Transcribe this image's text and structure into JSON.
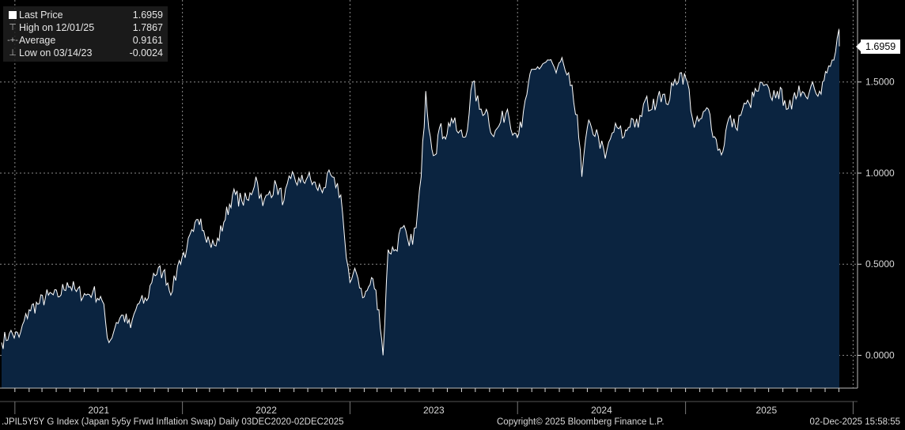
{
  "legend": {
    "last_price": {
      "label": "Last Price",
      "value": "1.6959"
    },
    "high": {
      "label": "High on 12/01/25",
      "value": "1.7867"
    },
    "average": {
      "label": "Average",
      "value": "0.9161"
    },
    "low": {
      "label": "Low on 03/14/23",
      "value": "-0.0024"
    }
  },
  "last_badge": "1.6959",
  "footer": {
    "left": ".JPIL5Y5Y G Index (Japan 5y5y Frwd Inflation Swap) Daily 03DEC2020-02DEC2025",
    "center": "Copyright© 2025 Bloomberg Finance L.P.",
    "right": "02-Dec-2025 15:58:55"
  },
  "colors": {
    "background": "#000000",
    "area_fill": "#0b2440",
    "line": "#ffffff",
    "grid": "#8a8a8a",
    "axis_text": "#d9d9d9"
  },
  "chart_data": {
    "type": "area",
    "title": "",
    "xlabel": "",
    "ylabel": "",
    "ylim": [
      -0.18,
      1.95
    ],
    "yticks": [
      "0.0000",
      "0.5000",
      "1.0000",
      "1.5000"
    ],
    "xtick_labels": [
      "2021",
      "2022",
      "2023",
      "2024",
      "2025"
    ],
    "grid": true,
    "legend_position": "top-left",
    "series": [
      {
        "name": "Last Price",
        "x": [
          "2020-12-03",
          "2020-12-20",
          "2021-01-10",
          "2021-02-01",
          "2021-02-20",
          "2021-03-15",
          "2021-04-05",
          "2021-04-25",
          "2021-05-15",
          "2021-06-05",
          "2021-06-20",
          "2021-07-10",
          "2021-07-25",
          "2021-08-10",
          "2021-08-25",
          "2021-09-10",
          "2021-09-25",
          "2021-10-15",
          "2021-10-30",
          "2021-11-20",
          "2021-12-10",
          "2021-12-25",
          "2022-01-10",
          "2022-01-25",
          "2022-02-10",
          "2022-03-01",
          "2022-03-15",
          "2022-04-01",
          "2022-04-20",
          "2022-05-10",
          "2022-05-25",
          "2022-06-10",
          "2022-06-25",
          "2022-07-10",
          "2022-07-25",
          "2022-08-10",
          "2022-08-25",
          "2022-09-15",
          "2022-10-01",
          "2022-10-20",
          "2022-11-05",
          "2022-11-20",
          "2022-12-01",
          "2022-12-12",
          "2022-12-20",
          "2023-01-01",
          "2023-01-15",
          "2023-02-01",
          "2023-02-20",
          "2023-03-05",
          "2023-03-14",
          "2023-03-25",
          "2023-04-10",
          "2023-04-25",
          "2023-05-10",
          "2023-05-25",
          "2023-06-05",
          "2023-06-15",
          "2023-06-25",
          "2023-07-05",
          "2023-07-15",
          "2023-07-25",
          "2023-08-10",
          "2023-08-25",
          "2023-09-10",
          "2023-09-25",
          "2023-10-10",
          "2023-10-25",
          "2023-11-10",
          "2023-11-25",
          "2023-12-10",
          "2023-12-25",
          "2024-01-10",
          "2024-01-25",
          "2024-02-10",
          "2024-02-25",
          "2024-03-10",
          "2024-03-25",
          "2024-04-10",
          "2024-04-25",
          "2024-05-10",
          "2024-05-20",
          "2024-06-01",
          "2024-06-10",
          "2024-06-25",
          "2024-07-10",
          "2024-07-25",
          "2024-08-05",
          "2024-08-20",
          "2024-09-05",
          "2024-09-20",
          "2024-10-05",
          "2024-10-20",
          "2024-11-05",
          "2024-11-20",
          "2024-12-05",
          "2024-12-20",
          "2025-01-05",
          "2025-01-20",
          "2025-02-05",
          "2025-02-20",
          "2025-03-05",
          "2025-03-20",
          "2025-04-05",
          "2025-04-20",
          "2025-05-05",
          "2025-05-20",
          "2025-06-05",
          "2025-06-20",
          "2025-07-05",
          "2025-07-20",
          "2025-08-05",
          "2025-08-20",
          "2025-09-05",
          "2025-09-20",
          "2025-10-05",
          "2025-10-20",
          "2025-11-05",
          "2025-11-20",
          "2025-12-01",
          "2025-12-02"
        ],
        "values": [
          0.07,
          0.12,
          0.1,
          0.25,
          0.28,
          0.33,
          0.32,
          0.4,
          0.35,
          0.33,
          0.35,
          0.3,
          0.07,
          0.18,
          0.22,
          0.15,
          0.28,
          0.3,
          0.45,
          0.46,
          0.35,
          0.52,
          0.58,
          0.68,
          0.75,
          0.62,
          0.6,
          0.73,
          0.88,
          0.85,
          0.85,
          0.98,
          0.82,
          0.9,
          0.93,
          0.85,
          0.97,
          0.95,
          0.98,
          0.92,
          0.92,
          0.99,
          0.92,
          0.88,
          0.65,
          0.4,
          0.45,
          0.32,
          0.42,
          0.25,
          0.0,
          0.58,
          0.58,
          0.7,
          0.6,
          0.7,
          0.98,
          1.45,
          1.2,
          1.1,
          1.25,
          1.2,
          1.3,
          1.22,
          1.2,
          1.5,
          1.35,
          1.35,
          1.2,
          1.28,
          1.35,
          1.22,
          1.25,
          1.5,
          1.57,
          1.6,
          1.62,
          1.55,
          1.6,
          1.48,
          1.32,
          0.98,
          1.25,
          1.25,
          1.2,
          1.08,
          1.22,
          1.25,
          1.2,
          1.3,
          1.25,
          1.4,
          1.35,
          1.45,
          1.38,
          1.48,
          1.55,
          1.5,
          1.25,
          1.3,
          1.35,
          1.2,
          1.1,
          1.3,
          1.25,
          1.35,
          1.38,
          1.45,
          1.48,
          1.42,
          1.45,
          1.4,
          1.35,
          1.48,
          1.42,
          1.5,
          1.45,
          1.55,
          1.62,
          1.7867,
          1.6959
        ]
      }
    ]
  }
}
